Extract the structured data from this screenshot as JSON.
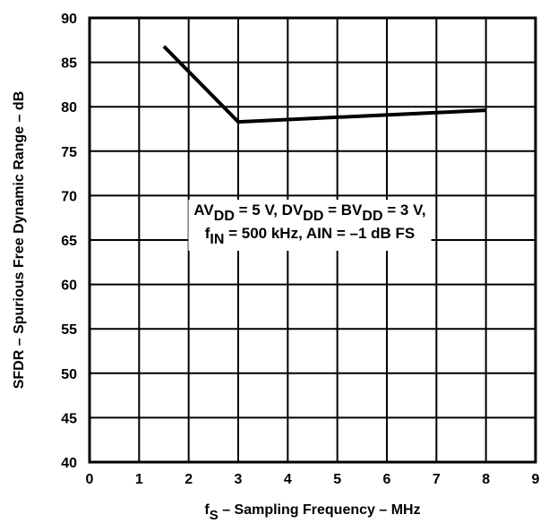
{
  "chart_data": {
    "type": "line",
    "xlabel": {
      "main": "f",
      "sub": "S",
      "rest": " – Sampling Frequency – MHz"
    },
    "ylabel": "SFDR – Spurious Free Dynamic Range – dB",
    "xlim": [
      0,
      9
    ],
    "ylim": [
      40,
      90
    ],
    "xticks": [
      "0",
      "1",
      "2",
      "3",
      "4",
      "5",
      "6",
      "7",
      "8",
      "9"
    ],
    "yticks": [
      "40",
      "45",
      "50",
      "55",
      "60",
      "65",
      "70",
      "75",
      "80",
      "85",
      "90"
    ],
    "grid": true,
    "series": [
      {
        "x": [
          1.5,
          3,
          8
        ],
        "y": [
          86.8,
          78.3,
          79.6
        ]
      }
    ],
    "annotation": {
      "line1": [
        {
          "t": "AV"
        },
        {
          "t": "DD",
          "sub": true
        },
        {
          "t": " = 5 V, DV"
        },
        {
          "t": "DD",
          "sub": true
        },
        {
          "t": " = BV"
        },
        {
          "t": "DD",
          "sub": true
        },
        {
          "t": " = 3 V,"
        }
      ],
      "line2": [
        {
          "t": "f"
        },
        {
          "t": "IN",
          "sub": true
        },
        {
          "t": " = 500 kHz, AIN = –1 dB FS"
        }
      ]
    }
  }
}
